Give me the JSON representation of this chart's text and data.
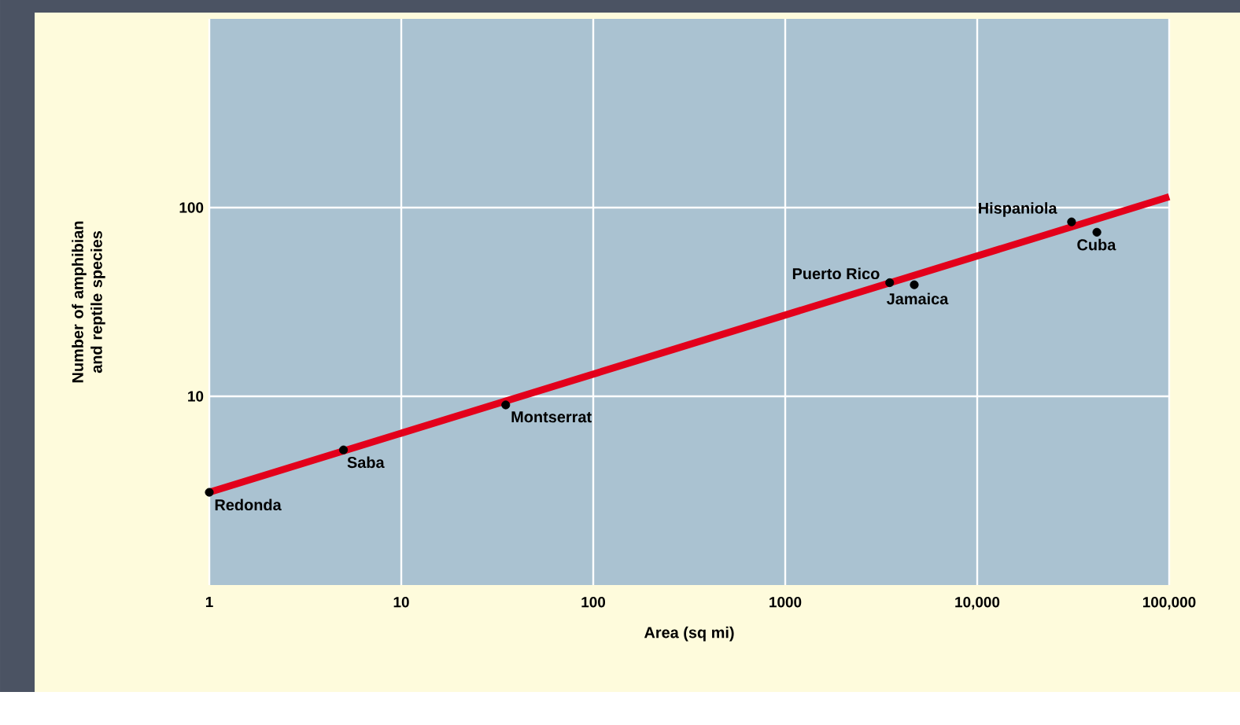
{
  "chart_data": {
    "type": "scatter",
    "xlabel": "Area  (sq mi)",
    "ylabel": "Number of amphibian and reptile species",
    "x": [
      1,
      5,
      35,
      3500,
      4700,
      31000,
      42000
    ],
    "series": [
      {
        "color": "#000000",
        "marker": "circle",
        "values": [
          3.1,
          5.2,
          9,
          40,
          39,
          84,
          74
        ]
      },
      {
        "type": "line",
        "color": "#e3001b",
        "marker": "none",
        "x": [
          1,
          100000
        ],
        "values": [
          3.1,
          114
        ]
      }
    ],
    "annotations": [
      {
        "text": "Redonda",
        "x": 1,
        "y": 3.1
      },
      {
        "text": "Saba",
        "x": 5,
        "y": 5.2
      },
      {
        "text": "Montserrat",
        "x": 35,
        "y": 9
      },
      {
        "text": "Puerto Rico",
        "x": 3500,
        "y": 40
      },
      {
        "text": "Jamaica",
        "x": 4700,
        "y": 39
      },
      {
        "text": "Hispaniola",
        "x": 31000,
        "y": 84
      },
      {
        "text": "Cuba",
        "x": 42000,
        "y": 74
      }
    ],
    "xlim": [
      1,
      100000
    ],
    "ylim": [
      1,
      1000
    ],
    "xticks": [
      1,
      10,
      100,
      1000,
      {
        "value": 10000,
        "label": "10,000"
      },
      {
        "value": 100000,
        "label": "100,000"
      }
    ],
    "yticks": [
      10,
      100
    ],
    "log": "xy",
    "grid": true
  }
}
